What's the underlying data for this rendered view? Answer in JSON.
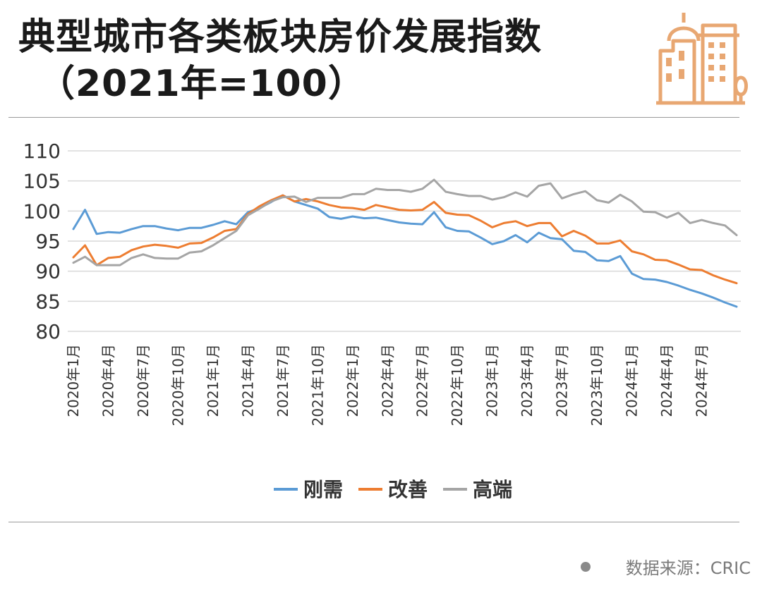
{
  "title": {
    "line1": "典型城市各类板块房价发展指数",
    "line2": "（2021年=100）"
  },
  "icon": "city-buildings-icon",
  "colors": {
    "刚需": "#5b9bd5",
    "改善": "#ed7d31",
    "高端": "#a5a5a5",
    "logo": "#e8a772",
    "grid": "#d9d9d9"
  },
  "source": "数据来源：CRIC",
  "chart_data": {
    "type": "line",
    "title": "典型城市各类板块房价发展指数（2021年=100）",
    "xlabel": "",
    "ylabel": "",
    "ylim": [
      80,
      110
    ],
    "yticks": [
      80,
      85,
      90,
      95,
      100,
      105,
      110
    ],
    "grid": true,
    "legend_position": "bottom",
    "x": [
      "2020年1月",
      "2020年2月",
      "2020年3月",
      "2020年4月",
      "2020年5月",
      "2020年6月",
      "2020年7月",
      "2020年8月",
      "2020年9月",
      "2020年10月",
      "2020年11月",
      "2020年12月",
      "2021年1月",
      "2021年2月",
      "2021年3月",
      "2021年4月",
      "2021年5月",
      "2021年6月",
      "2021年7月",
      "2021年8月",
      "2021年9月",
      "2021年10月",
      "2021年11月",
      "2021年12月",
      "2022年1月",
      "2022年2月",
      "2022年3月",
      "2022年4月",
      "2022年5月",
      "2022年6月",
      "2022年7月",
      "2022年8月",
      "2022年9月",
      "2022年10月",
      "2022年11月",
      "2022年12月",
      "2023年1月",
      "2023年2月",
      "2023年3月",
      "2023年4月",
      "2023年5月",
      "2023年6月",
      "2023年7月",
      "2023年8月",
      "2023年9月",
      "2023年10月",
      "2023年11月",
      "2023年12月",
      "2024年1月",
      "2024年2月",
      "2024年3月",
      "2024年4月",
      "2024年5月",
      "2024年6月",
      "2024年7月",
      "2024年8月",
      "2024年9月",
      "2024年10月"
    ],
    "tick_labels": [
      "2020年1月",
      "2020年4月",
      "2020年7月",
      "2020年10月",
      "2021年1月",
      "2021年4月",
      "2021年7月",
      "2021年10月",
      "2022年1月",
      "2022年4月",
      "2022年7月",
      "2022年10月",
      "2023年1月",
      "2023年4月",
      "2023年7月",
      "2023年10月",
      "2024年1月",
      "2024年4月",
      "2024年7月"
    ],
    "series": [
      {
        "name": "刚需",
        "values": [
          97.0,
          100.2,
          96.2,
          96.5,
          96.4,
          97.0,
          97.5,
          97.5,
          97.1,
          96.8,
          97.2,
          97.2,
          97.7,
          98.3,
          97.8,
          99.8,
          100.5,
          101.5,
          102.6,
          101.6,
          101.0,
          100.4,
          99.0,
          98.7,
          99.1,
          98.8,
          98.9,
          98.5,
          98.1,
          97.9,
          97.8,
          99.8,
          97.3,
          96.7,
          96.6,
          95.6,
          94.5,
          95.0,
          96.0,
          94.8,
          96.4,
          95.5,
          95.3,
          93.4,
          93.2,
          91.8,
          91.7,
          92.5,
          89.6,
          88.7,
          88.6,
          88.2,
          87.6,
          86.9,
          86.3,
          85.6,
          84.8,
          84.1
        ]
      },
      {
        "name": "改善",
        "values": [
          92.3,
          94.3,
          91.0,
          92.2,
          92.4,
          93.5,
          94.1,
          94.4,
          94.2,
          93.9,
          94.6,
          94.7,
          95.6,
          96.7,
          97.0,
          99.5,
          100.8,
          101.8,
          102.6,
          101.6,
          102.0,
          101.6,
          101.0,
          100.6,
          100.5,
          100.2,
          101.0,
          100.6,
          100.2,
          100.1,
          100.2,
          101.5,
          99.7,
          99.4,
          99.3,
          98.4,
          97.3,
          98.0,
          98.3,
          97.5,
          98.0,
          98.0,
          95.8,
          96.7,
          95.9,
          94.6,
          94.6,
          95.1,
          93.3,
          92.8,
          91.9,
          91.8,
          91.1,
          90.3,
          90.2,
          89.3,
          88.6,
          88.0
        ]
      },
      {
        "name": "高端",
        "values": [
          91.4,
          92.4,
          91.0,
          91.0,
          91.0,
          92.2,
          92.8,
          92.2,
          92.1,
          92.1,
          93.1,
          93.3,
          94.3,
          95.5,
          96.7,
          99.3,
          100.4,
          101.6,
          102.3,
          102.4,
          101.5,
          102.2,
          102.2,
          102.2,
          102.8,
          102.8,
          103.7,
          103.5,
          103.5,
          103.2,
          103.7,
          105.2,
          103.2,
          102.8,
          102.5,
          102.5,
          101.9,
          102.3,
          103.1,
          102.4,
          104.2,
          104.6,
          102.1,
          102.8,
          103.3,
          101.8,
          101.4,
          102.7,
          101.6,
          99.9,
          99.8,
          98.9,
          99.7,
          98.0,
          98.5,
          98.0,
          97.6,
          96.0
        ]
      }
    ]
  }
}
